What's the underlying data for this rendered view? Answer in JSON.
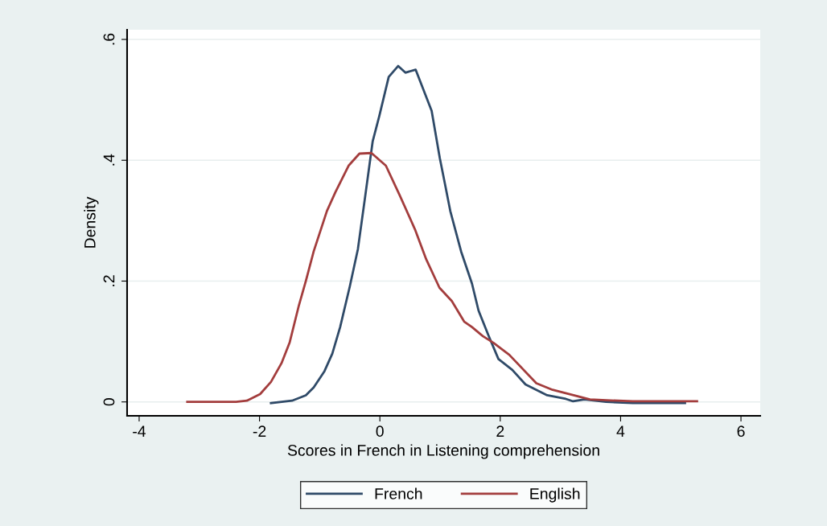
{
  "chart_data": {
    "type": "line",
    "xlabel": "Scores in French in Listening comprehension",
    "ylabel": "Density",
    "xlim": [
      -4.2,
      6.32
    ],
    "xticks": [
      -4,
      -2,
      0,
      2,
      4,
      6
    ],
    "ylim": [
      -0.023,
      0.616
    ],
    "yticks": [
      {
        "value": 0,
        "label": "0"
      },
      {
        "value": 0.2,
        "label": ".2"
      },
      {
        "value": 0.4,
        "label": ".4"
      },
      {
        "value": 0.6,
        "label": ".6"
      }
    ],
    "grid": "y",
    "legend": "bottom",
    "line_style": "solid",
    "marker": "none",
    "series": [
      {
        "name": "French",
        "color": "#2f4a68",
        "x": [
          -1.81,
          -1.46,
          -1.23,
          -1.1,
          -0.92,
          -0.79,
          -0.66,
          -0.5,
          -0.365,
          -0.254,
          -0.12,
          -0.01,
          0.147,
          0.303,
          0.424,
          0.594,
          0.86,
          0.995,
          1.083,
          1.17,
          1.35,
          1.53,
          1.64,
          1.8,
          1.97,
          2.2,
          2.42,
          2.78,
          3.09,
          3.21,
          3.4,
          3.76,
          4.2,
          5.07
        ],
        "values": [
          -0.002,
          0.002,
          0.011,
          0.024,
          0.051,
          0.08,
          0.124,
          0.191,
          0.253,
          0.333,
          0.431,
          0.473,
          0.538,
          0.556,
          0.545,
          0.55,
          0.482,
          0.404,
          0.36,
          0.316,
          0.249,
          0.196,
          0.151,
          0.111,
          0.071,
          0.053,
          0.029,
          0.011,
          0.005,
          0.001,
          0.004,
          0,
          -0.002,
          -0.002
        ]
      },
      {
        "name": "English",
        "color": "#a33d3d",
        "x": [
          -3.2,
          -2.39,
          -2.21,
          -1.99,
          -1.81,
          -1.635,
          -1.5,
          -1.345,
          -1.23,
          -1.1,
          -0.88,
          -0.74,
          -0.52,
          -0.34,
          -0.14,
          0.1,
          0.33,
          0.59,
          0.77,
          0.99,
          1.195,
          1.4,
          1.53,
          1.71,
          1.885,
          2.15,
          2.6,
          2.87,
          3.49,
          4.2,
          5.27
        ],
        "values": [
          0,
          0,
          0.002,
          0.013,
          0.033,
          0.064,
          0.098,
          0.16,
          0.2,
          0.249,
          0.316,
          0.347,
          0.391,
          0.411,
          0.412,
          0.391,
          0.342,
          0.284,
          0.236,
          0.189,
          0.167,
          0.133,
          0.124,
          0.109,
          0.098,
          0.078,
          0.031,
          0.02,
          0.004,
          0.001,
          0.001
        ]
      }
    ]
  }
}
